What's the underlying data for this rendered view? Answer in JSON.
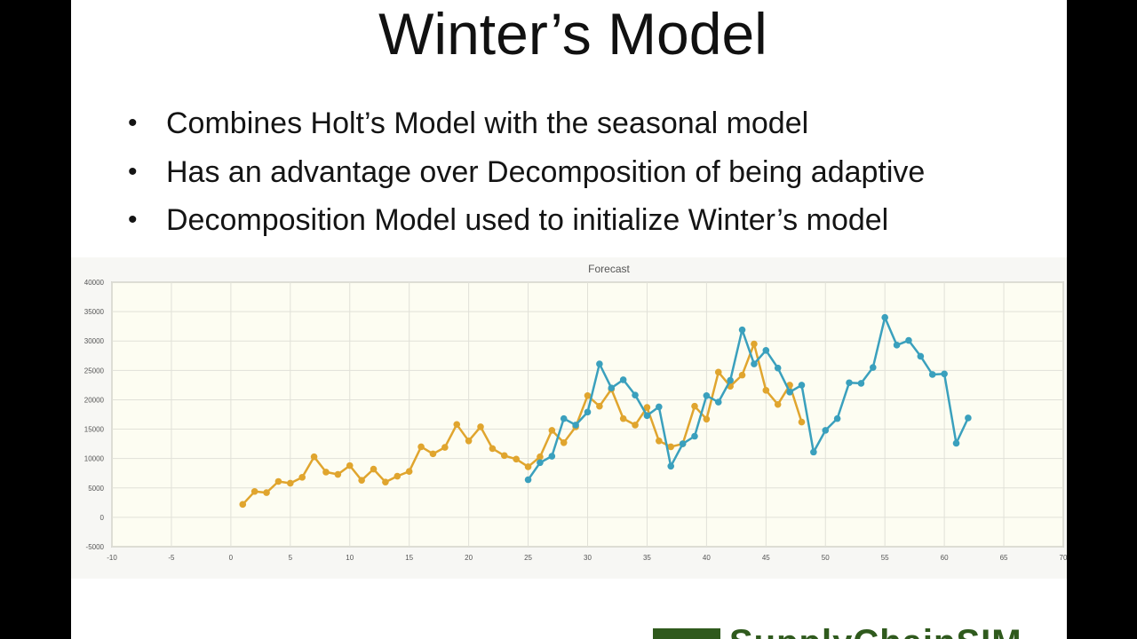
{
  "slide": {
    "title": "Winter’s Model",
    "bullets": [
      "Combines Holt’s Model with the seasonal model",
      "Has an advantage over Decomposition of being adaptive",
      "Decomposition Model used to initialize Winter’s model"
    ],
    "bullet_glyph": "•",
    "logo_text": "SupplyChainSIM"
  },
  "chart_data": {
    "type": "line",
    "title": "Forecast",
    "xlabel": "",
    "ylabel": "",
    "xlim": [
      -10,
      70
    ],
    "ylim": [
      -5000,
      40000
    ],
    "x_ticks": [
      -10,
      -5,
      0,
      5,
      10,
      15,
      20,
      25,
      30,
      35,
      40,
      45,
      50,
      55,
      60,
      65,
      70
    ],
    "y_ticks": [
      -5000,
      0,
      5000,
      10000,
      15000,
      20000,
      25000,
      30000,
      35000,
      40000
    ],
    "grid": true,
    "legend": "none",
    "series": [
      {
        "color": "#e0a52e",
        "x": [
          1,
          2,
          3,
          4,
          5,
          6,
          7,
          8,
          9,
          10,
          11,
          12,
          13,
          14,
          15,
          16,
          17,
          18,
          19,
          20,
          21,
          22,
          23,
          24,
          25,
          26,
          27,
          28,
          29,
          30,
          31,
          32,
          33,
          34,
          35,
          36,
          37,
          38,
          39,
          40,
          41,
          42,
          43,
          44,
          45,
          46,
          47,
          48
        ],
        "y": [
          2200,
          4400,
          4200,
          6100,
          5800,
          6800,
          10300,
          7700,
          7300,
          8800,
          6300,
          8200,
          6000,
          7000,
          7800,
          12000,
          10800,
          11900,
          15800,
          13000,
          15400,
          11700,
          10500,
          9900,
          8600,
          10300,
          14800,
          12700,
          15400,
          20700,
          18900,
          21800,
          16800,
          15700,
          18700,
          13000,
          12000,
          12500,
          18900,
          16700,
          24700,
          22300,
          24200,
          29500,
          21600,
          19200,
          22500,
          16200
        ]
      },
      {
        "color": "#3aa0bd",
        "x": [
          25,
          26,
          27,
          28,
          29,
          30,
          31,
          32,
          33,
          34,
          35,
          36,
          37,
          38,
          39,
          40,
          41,
          42,
          43,
          44,
          45,
          46,
          47,
          48,
          49,
          50,
          51,
          52,
          53,
          54,
          55,
          56,
          57,
          58,
          59,
          60,
          61,
          62
        ],
        "y": [
          6400,
          9300,
          10400,
          16800,
          15700,
          17900,
          26100,
          22000,
          23400,
          20800,
          17300,
          18800,
          8700,
          12500,
          13800,
          20700,
          19600,
          23300,
          31900,
          26100,
          28400,
          25400,
          21300,
          22500,
          11100,
          14800,
          16800,
          22900,
          22800,
          25500,
          34000,
          29300,
          30100,
          27400,
          24300,
          24400,
          12600,
          16900
        ]
      }
    ]
  }
}
